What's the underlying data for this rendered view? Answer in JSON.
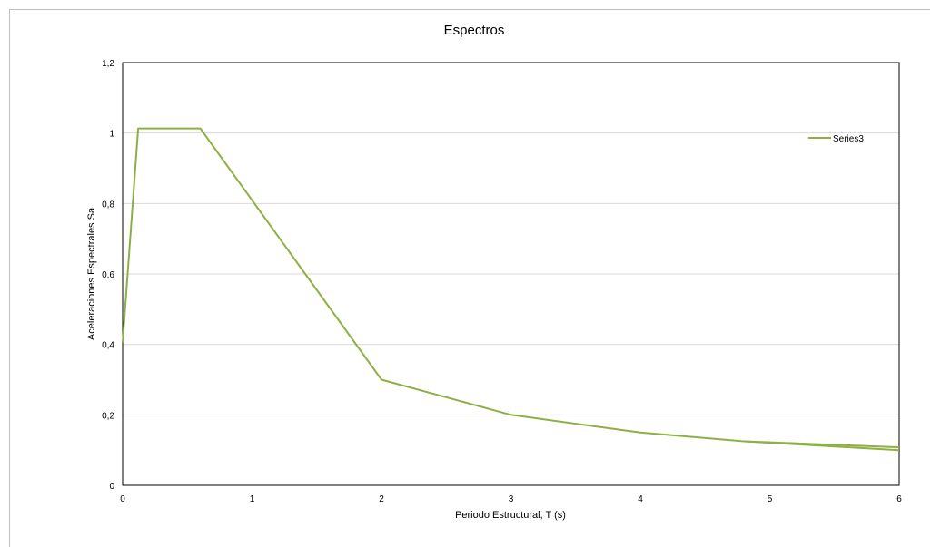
{
  "chart_data": {
    "type": "line",
    "title": "Espectros",
    "xlabel": "Periodo Estructural,  T (s)",
    "ylabel": "Aceleraciones  Espectrales  Sa",
    "xlim": [
      0,
      6
    ],
    "ylim": [
      0,
      1.2
    ],
    "xticks": [
      0,
      1,
      2,
      3,
      4,
      5,
      6
    ],
    "yticks": [
      0,
      0.2,
      0.4,
      0.6,
      0.8,
      1.0,
      1.2
    ],
    "xtick_labels": [
      "0",
      "1",
      "2",
      "3",
      "4",
      "5",
      "6"
    ],
    "ytick_labels": [
      "0",
      "0,2",
      "0,4",
      "0,6",
      "0,8",
      "1",
      "1,2"
    ],
    "grid": "horizontal",
    "legend_position": "top-right",
    "series": [
      {
        "name": "Series3",
        "color": "#8db043",
        "x": [
          0,
          0.12,
          0.6,
          2,
          3,
          4,
          4.8,
          6
        ],
        "y": [
          0.405,
          1.013,
          1.013,
          0.3,
          0.2,
          0.15,
          0.125,
          0.1
        ]
      },
      {
        "name": "",
        "color": "#8db043",
        "x": [
          4.8,
          6
        ],
        "y": [
          0.125,
          0.108
        ]
      }
    ]
  }
}
